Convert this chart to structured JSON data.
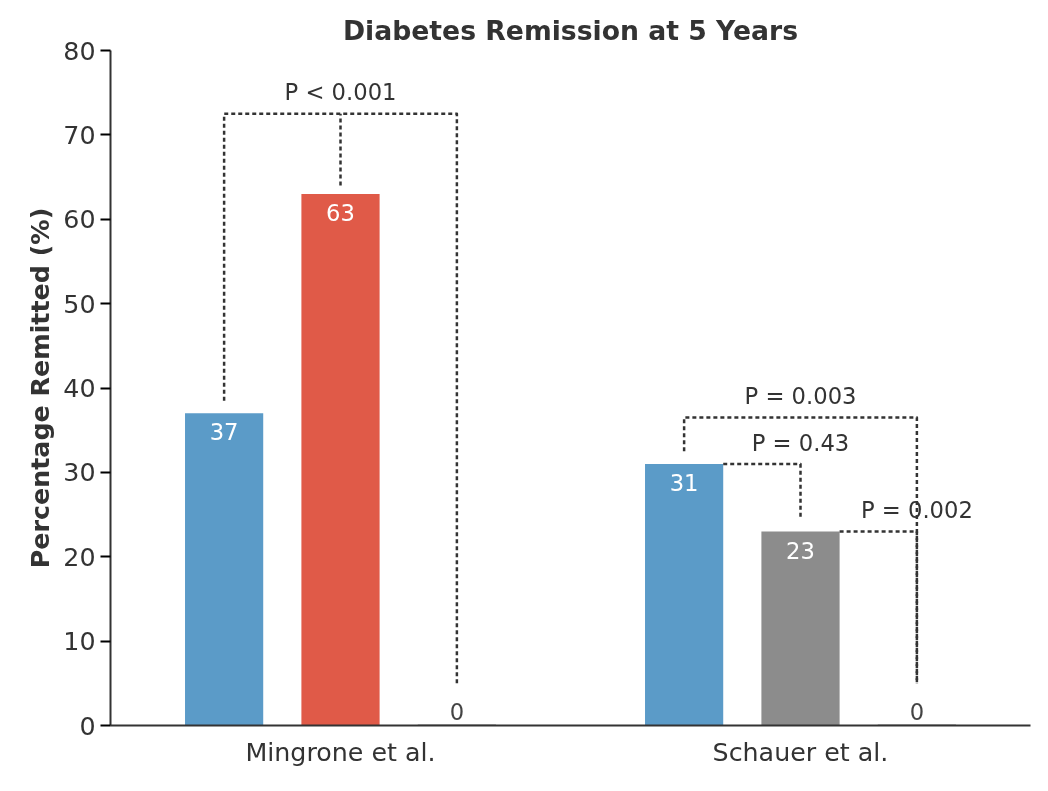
{
  "chart_data": {
    "type": "bar",
    "title": "Diabetes Remission at 5 Years",
    "ylabel": "Percentage Remitted (%)",
    "categories": [
      "Mingrone et al.",
      "Schauer et al."
    ],
    "series": [
      {
        "colors": [
          "#5b9bc8",
          "#5b9bc8"
        ],
        "values": [
          37,
          31
        ]
      },
      {
        "colors": [
          "#e05a48",
          "#8c8c8c"
        ],
        "values": [
          63,
          23
        ]
      },
      {
        "color": "#8c8c8c",
        "values": [
          0,
          0
        ]
      }
    ],
    "ylim": [
      0,
      80
    ],
    "yticks": [
      0,
      10,
      20,
      30,
      40,
      50,
      60,
      70,
      80
    ],
    "data_labels": true,
    "annotations": [
      "P < 0.001",
      "P = 0.003",
      "P = 0.43",
      "P = 0.002"
    ]
  }
}
